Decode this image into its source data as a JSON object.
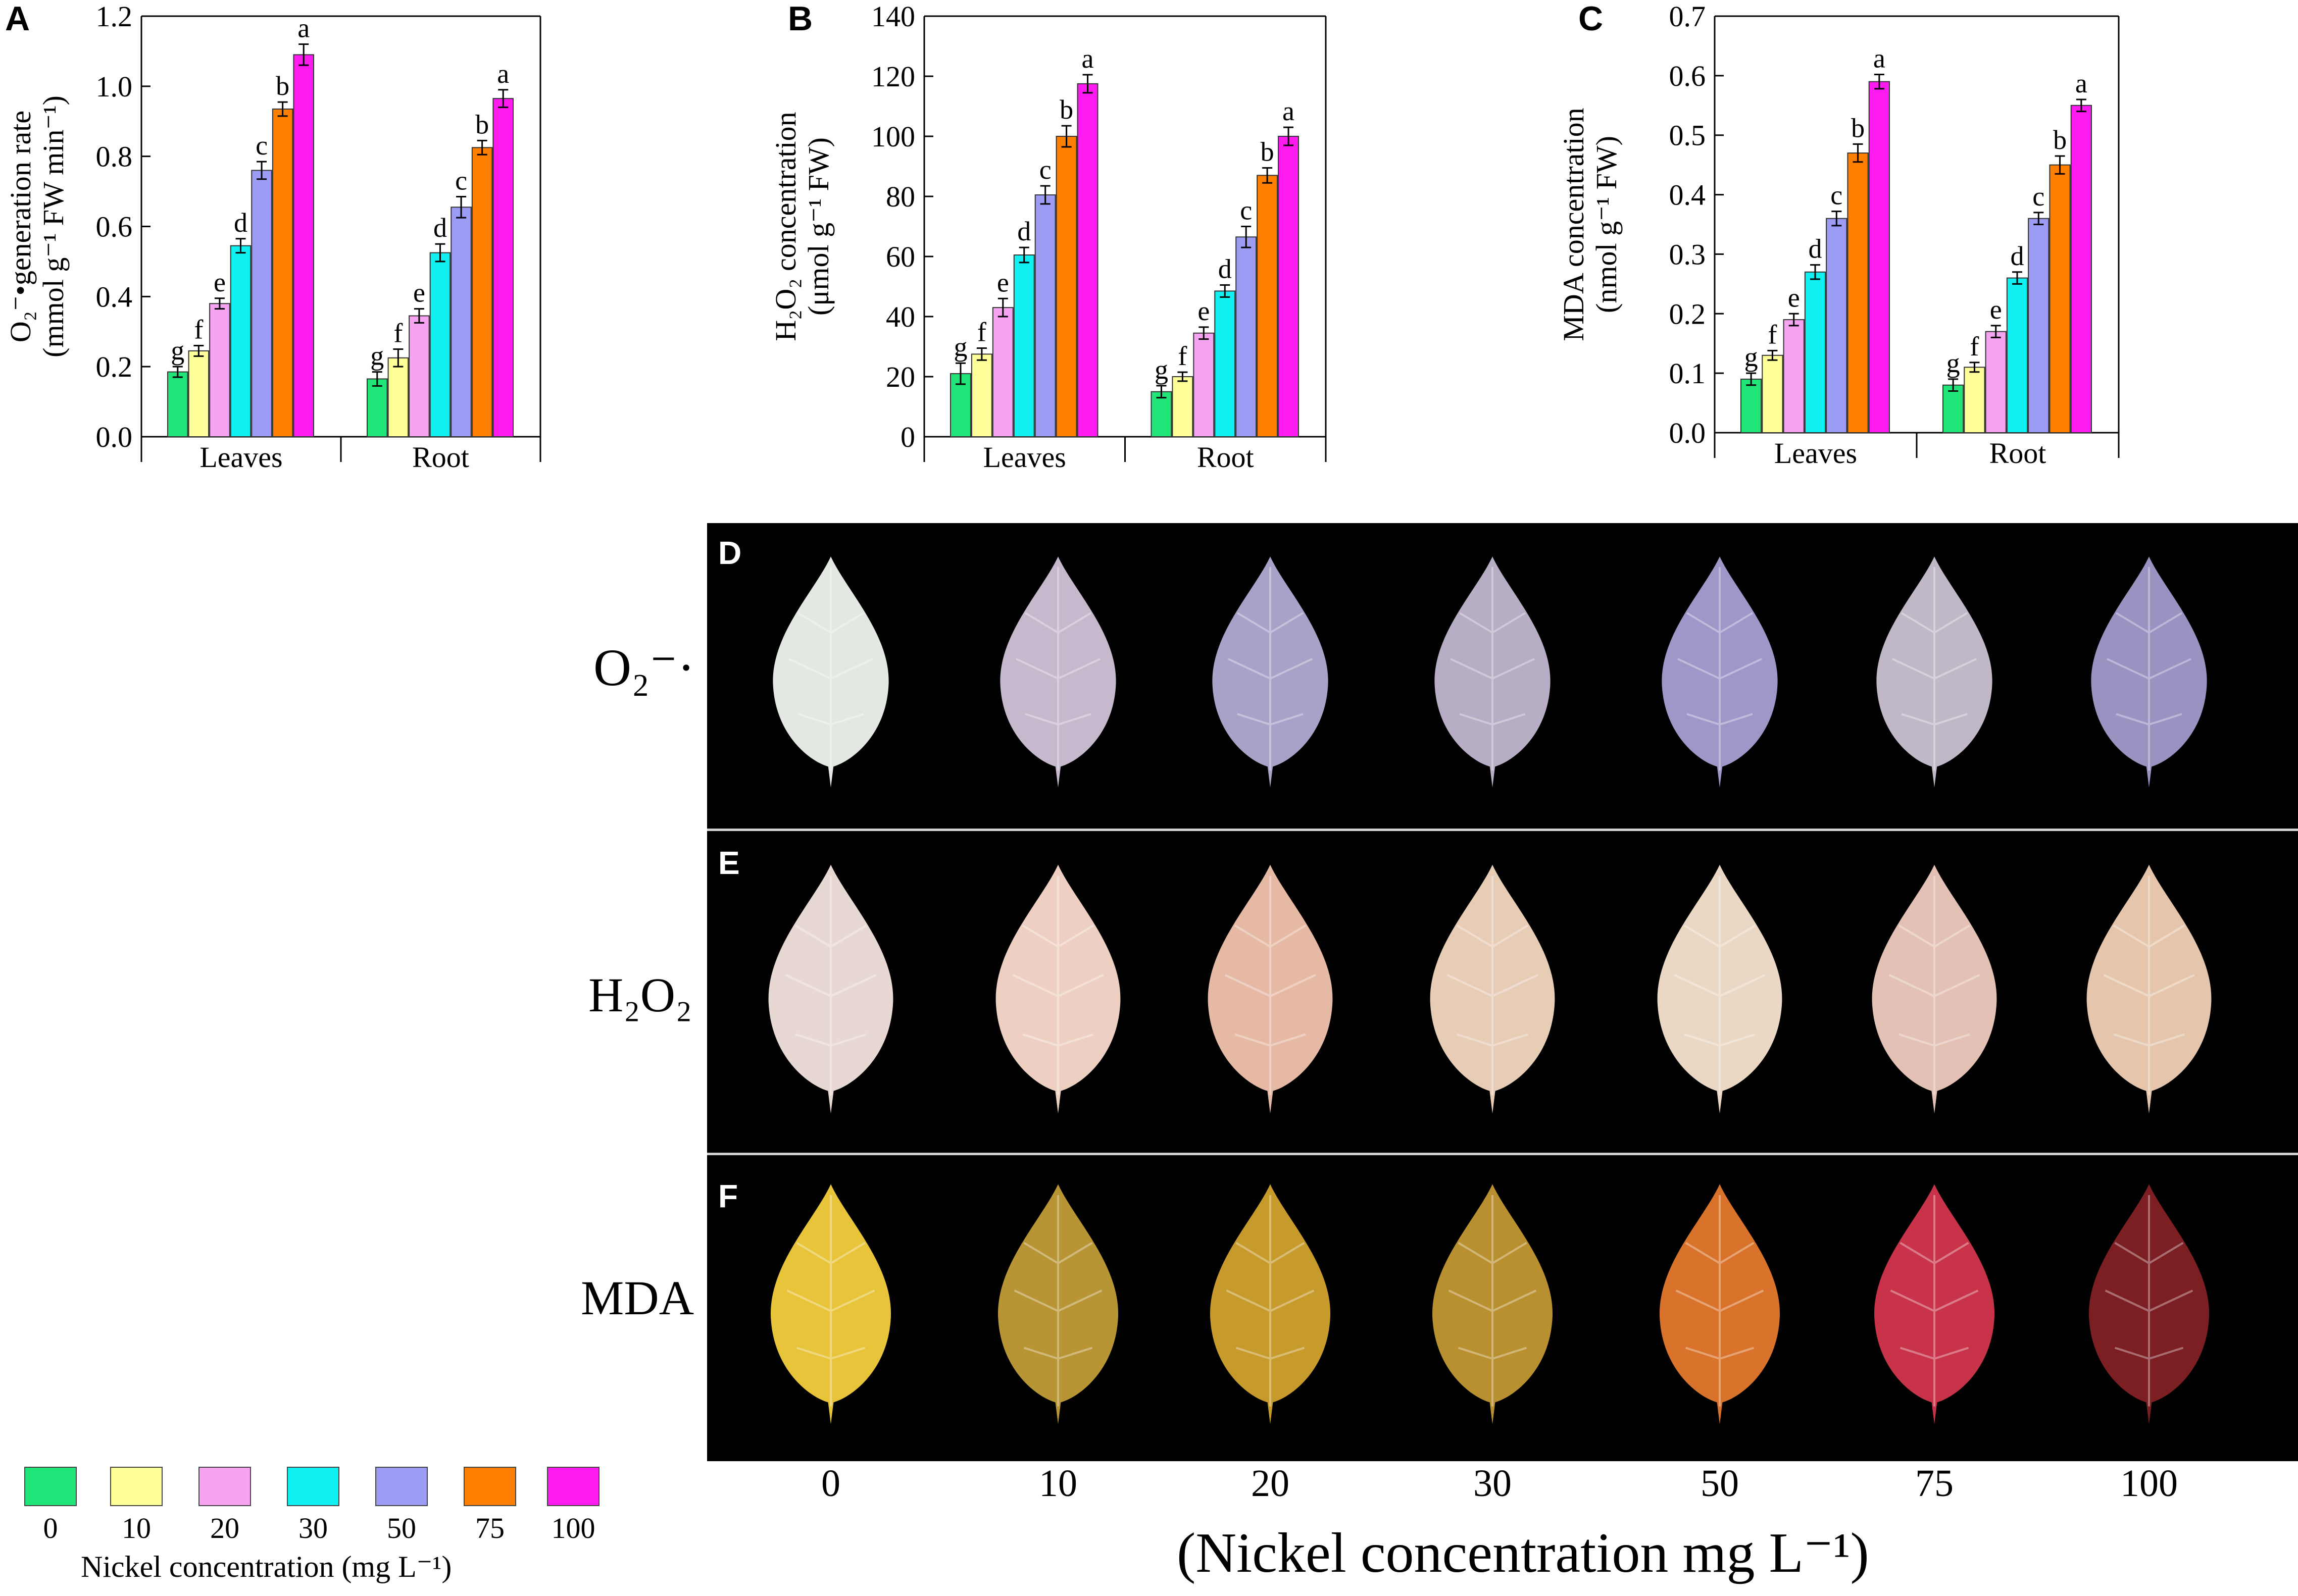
{
  "colors": [
    "#22e57a",
    "#ffff99",
    "#f6a3f2",
    "#10f0f0",
    "#9c9cf5",
    "#ff8000",
    "#ff1af0"
  ],
  "chart_data": [
    {
      "panel": "A",
      "type": "bar",
      "groups": [
        "Leaves",
        "Root"
      ],
      "series_names": [
        "0",
        "10",
        "20",
        "30",
        "50",
        "75",
        "100"
      ],
      "values": [
        [
          0.185,
          0.245,
          0.38,
          0.545,
          0.76,
          0.935,
          1.09
        ],
        [
          0.165,
          0.225,
          0.345,
          0.525,
          0.655,
          0.825,
          0.965
        ]
      ],
      "errors": [
        [
          0.015,
          0.015,
          0.015,
          0.02,
          0.025,
          0.02,
          0.03
        ],
        [
          0.02,
          0.025,
          0.02,
          0.025,
          0.03,
          0.02,
          0.025
        ]
      ],
      "letters": [
        [
          "g",
          "f",
          "e",
          "d",
          "c",
          "b",
          "a"
        ],
        [
          "g",
          "f",
          "e",
          "d",
          "c",
          "b",
          "a"
        ]
      ],
      "ylim": [
        0,
        1.2
      ],
      "yticks": [
        "0.0",
        "0.2",
        "0.4",
        "0.6",
        "0.8",
        "1.0",
        "1.2"
      ],
      "ylabel_line1": "O₂⁻•generation rate",
      "ylabel_line2": "(mmol g⁻¹ FW min⁻¹)"
    },
    {
      "panel": "B",
      "type": "bar",
      "groups": [
        "Leaves",
        "Root"
      ],
      "series_names": [
        "0",
        "10",
        "20",
        "30",
        "50",
        "75",
        "100"
      ],
      "values": [
        [
          21,
          27.5,
          43,
          60.5,
          80.5,
          100,
          117.5
        ],
        [
          15,
          20,
          34.5,
          48.5,
          66.5,
          87,
          100
        ]
      ],
      "errors": [
        [
          3.5,
          2,
          3,
          2.5,
          3,
          3.5,
          3
        ],
        [
          2,
          1.5,
          2,
          2,
          3.5,
          2.5,
          3
        ]
      ],
      "letters": [
        [
          "g",
          "f",
          "e",
          "d",
          "c",
          "b",
          "a"
        ],
        [
          "g",
          "f",
          "e",
          "d",
          "c",
          "b",
          "a"
        ]
      ],
      "ylim": [
        0,
        140
      ],
      "yticks": [
        "0",
        "20",
        "40",
        "60",
        "80",
        "100",
        "120",
        "140"
      ],
      "ylabel_line1": "H₂O₂ concentration",
      "ylabel_line2": "(μmol g⁻¹ FW)"
    },
    {
      "panel": "C",
      "type": "bar",
      "groups": [
        "Leaves",
        "Root"
      ],
      "series_names": [
        "0",
        "10",
        "20",
        "30",
        "50",
        "75",
        "100"
      ],
      "values": [
        [
          0.09,
          0.13,
          0.19,
          0.27,
          0.36,
          0.47,
          0.59
        ],
        [
          0.08,
          0.11,
          0.17,
          0.26,
          0.36,
          0.45,
          0.55
        ]
      ],
      "errors": [
        [
          0.01,
          0.008,
          0.01,
          0.012,
          0.012,
          0.015,
          0.012
        ],
        [
          0.01,
          0.008,
          0.01,
          0.01,
          0.01,
          0.015,
          0.01
        ]
      ],
      "letters": [
        [
          "g",
          "f",
          "e",
          "d",
          "c",
          "b",
          "a"
        ],
        [
          "g",
          "f",
          "e",
          "d",
          "c",
          "b",
          "a"
        ]
      ],
      "ylim": [
        0,
        0.7
      ],
      "yticks": [
        "0.0",
        "0.1",
        "0.2",
        "0.3",
        "0.4",
        "0.5",
        "0.6",
        "0.7"
      ],
      "ylabel_line1": "MDA concentration",
      "ylabel_line2": "(nmol g⁻¹ FW)"
    }
  ],
  "photos": {
    "rows": [
      {
        "letter": "D",
        "label": "O₂⁻·",
        "leaf_colors": [
          "#e3e8e2",
          "#c6b9cd",
          "#a9a2c8",
          "#b7adc4",
          "#9e98c9",
          "#c0b8c6",
          "#9a93c2"
        ]
      },
      {
        "letter": "E",
        "label": "H₂O₂",
        "leaf_colors": [
          "#e8d8d4",
          "#edd0c2",
          "#e6b9a4",
          "#e7cdb5",
          "#ead7c4",
          "#e3c1b4",
          "#e5c6ad"
        ]
      },
      {
        "letter": "F",
        "label": "MDA",
        "leaf_colors": [
          "#e7c43a",
          "#b79434",
          "#c79a2c",
          "#b99030",
          "#d9732c",
          "#c8334a",
          "#7c1f23"
        ]
      }
    ],
    "concentrations": [
      "0",
      "10",
      "20",
      "30",
      "50",
      "75",
      "100"
    ],
    "x_title": "(Nickel concentration mg L⁻¹)"
  },
  "legend": {
    "labels": [
      "0",
      "10",
      "20",
      "30",
      "50",
      "75",
      "100"
    ],
    "title": "Nickel concentration (mg L⁻¹)"
  }
}
